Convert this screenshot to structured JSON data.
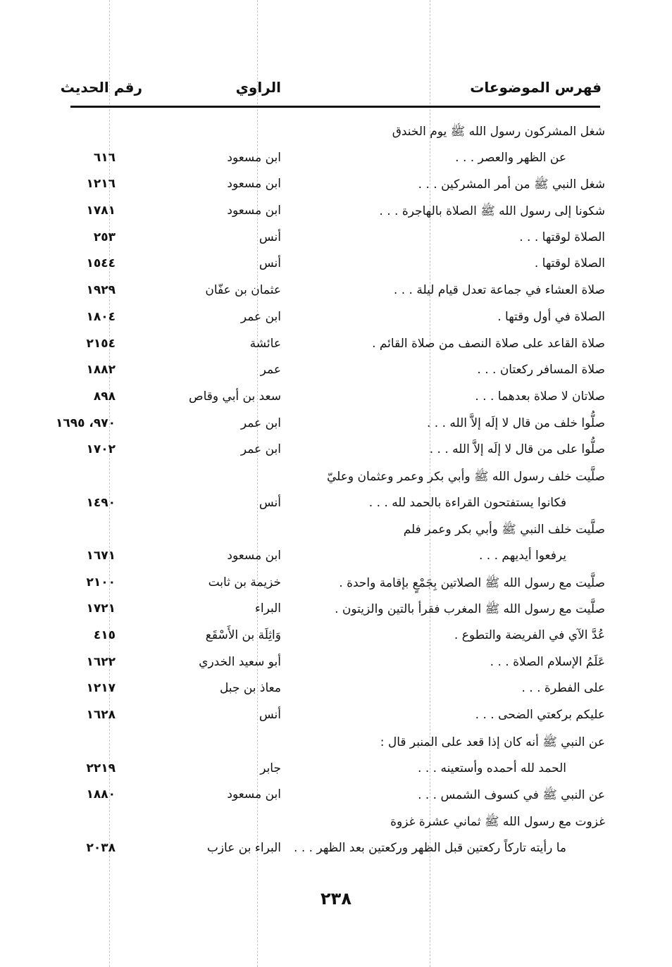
{
  "header": {
    "topics": "فهرس الموضوعات",
    "narrator": "الراوي",
    "hadith_number": "رقم الحديث"
  },
  "rows": [
    {
      "topic": "شغل المشركون رسول الله ﷺ يوم الخندق",
      "narrator": "",
      "number": "",
      "indent": false
    },
    {
      "topic": "عن الظهر والعصر . . .",
      "narrator": "ابن مسعود",
      "number": "٦١٦",
      "indent": true
    },
    {
      "topic": "شغل النبي ﷺ من أمر المشركين . . .",
      "narrator": "ابن مسعود",
      "number": "١٢١٦",
      "indent": false
    },
    {
      "topic": "شكونا إلى رسول الله ﷺ الصلاة بالهاجرة . . .",
      "narrator": "ابن مسعود",
      "number": "١٧٨١",
      "indent": false
    },
    {
      "topic": "الصلاة لوقتها . . .",
      "narrator": "أنس",
      "number": "٢٥٣",
      "indent": false
    },
    {
      "topic": "الصلاة لوقتها .",
      "narrator": "أنس",
      "number": "١٥٤٤",
      "indent": false
    },
    {
      "topic": "صلاة العشاء في جماعة تعدل قيام ليلة . . .",
      "narrator": "عثمان بن عفّان",
      "number": "١٩٢٩",
      "indent": false
    },
    {
      "topic": "الصلاة في أول وقتها .",
      "narrator": "ابن عمر",
      "number": "١٨٠٤",
      "indent": false
    },
    {
      "topic": "صلاة القاعد على صلاة النصف من صلاة القائم .",
      "narrator": "عائشة",
      "number": "٢١٥٤",
      "indent": false
    },
    {
      "topic": "صلاة المسافر ركعتان . . .",
      "narrator": "عمر",
      "number": "١٨٨٢",
      "indent": false
    },
    {
      "topic": "صلاتان لا صلاة بعدهما . . .",
      "narrator": "سعد بن أبي وقاص",
      "number": "٨٩٨",
      "indent": false
    },
    {
      "topic": "صلُّوا خلف من قال لا إلَه إلاَّ الله . . .",
      "narrator": "ابن عمر",
      "number": "٩٧٠، ١٦٩٥",
      "indent": false
    },
    {
      "topic": "صلُّوا على من قال لا إلَه إلاَّ الله . . .",
      "narrator": "ابن عمر",
      "number": "١٧٠٢",
      "indent": false
    },
    {
      "topic": "صلَّيت خلف رسول الله ﷺ وأبي بكر وعمر وعثمان وعليّ",
      "narrator": "",
      "number": "",
      "indent": false
    },
    {
      "topic": "فكانوا يستفتحون القراءة بالحمد لله . . .",
      "narrator": "أنس",
      "number": "١٤٩٠",
      "indent": true
    },
    {
      "topic": "صلَّيت خلف النبي ﷺ وأبي بكر وعمر فلم",
      "narrator": "",
      "number": "",
      "indent": false
    },
    {
      "topic": "يرفعوا أيديهم . . .",
      "narrator": "ابن مسعود",
      "number": "١٦٧١",
      "indent": true
    },
    {
      "topic": "صلَّيت مع رسول الله ﷺ الصلاتين بِجَمْعٍ بإقامة واحدة .",
      "narrator": "خزيمة بن ثابت",
      "number": "٢١٠٠",
      "indent": false
    },
    {
      "topic": "صلَّيت مع رسول الله ﷺ المغرب فقرأ بالتين والزيتون .",
      "narrator": "البراء",
      "number": "١٧٢١",
      "indent": false
    },
    {
      "topic": "عُدَّ الآي في الفريضة والتطوع .",
      "narrator": "وَاثِلَة بن الأَسْقَع",
      "number": "٤١٥",
      "indent": false
    },
    {
      "topic": "عَلَمُ الإسلام الصلاة . . .",
      "narrator": "أبو سعيد الخدري",
      "number": "١٦٢٢",
      "indent": false
    },
    {
      "topic": "على الفطرة . . .",
      "narrator": "معاذ بن جبل",
      "number": "١٢١٧",
      "indent": false
    },
    {
      "topic": "عليكم بركعتي الضحى . . .",
      "narrator": "أنس",
      "number": "١٦٢٨",
      "indent": false
    },
    {
      "topic": "عن النبي ﷺ أنه كان إذا قعد على المنبر قال :",
      "narrator": "",
      "number": "",
      "indent": false
    },
    {
      "topic": "الحمد لله أحمده وأستعينه . . .",
      "narrator": "جابر",
      "number": "٢٢١٩",
      "indent": true
    },
    {
      "topic": "عن النبي ﷺ في كسوف الشمس . . .",
      "narrator": "ابن مسعود",
      "number": "١٨٨٠",
      "indent": false
    },
    {
      "topic": "غزوت مع رسول الله ﷺ ثماني عشرة غزوة",
      "narrator": "",
      "number": "",
      "indent": false
    },
    {
      "topic": "ما رأيته تاركاً ركعتين قبل الظهر وركعتين بعد الظهر . . .",
      "narrator": "البراء بن عازب",
      "number": "٢٠٣٨",
      "indent": true
    }
  ],
  "page_number": "٢٣٨"
}
